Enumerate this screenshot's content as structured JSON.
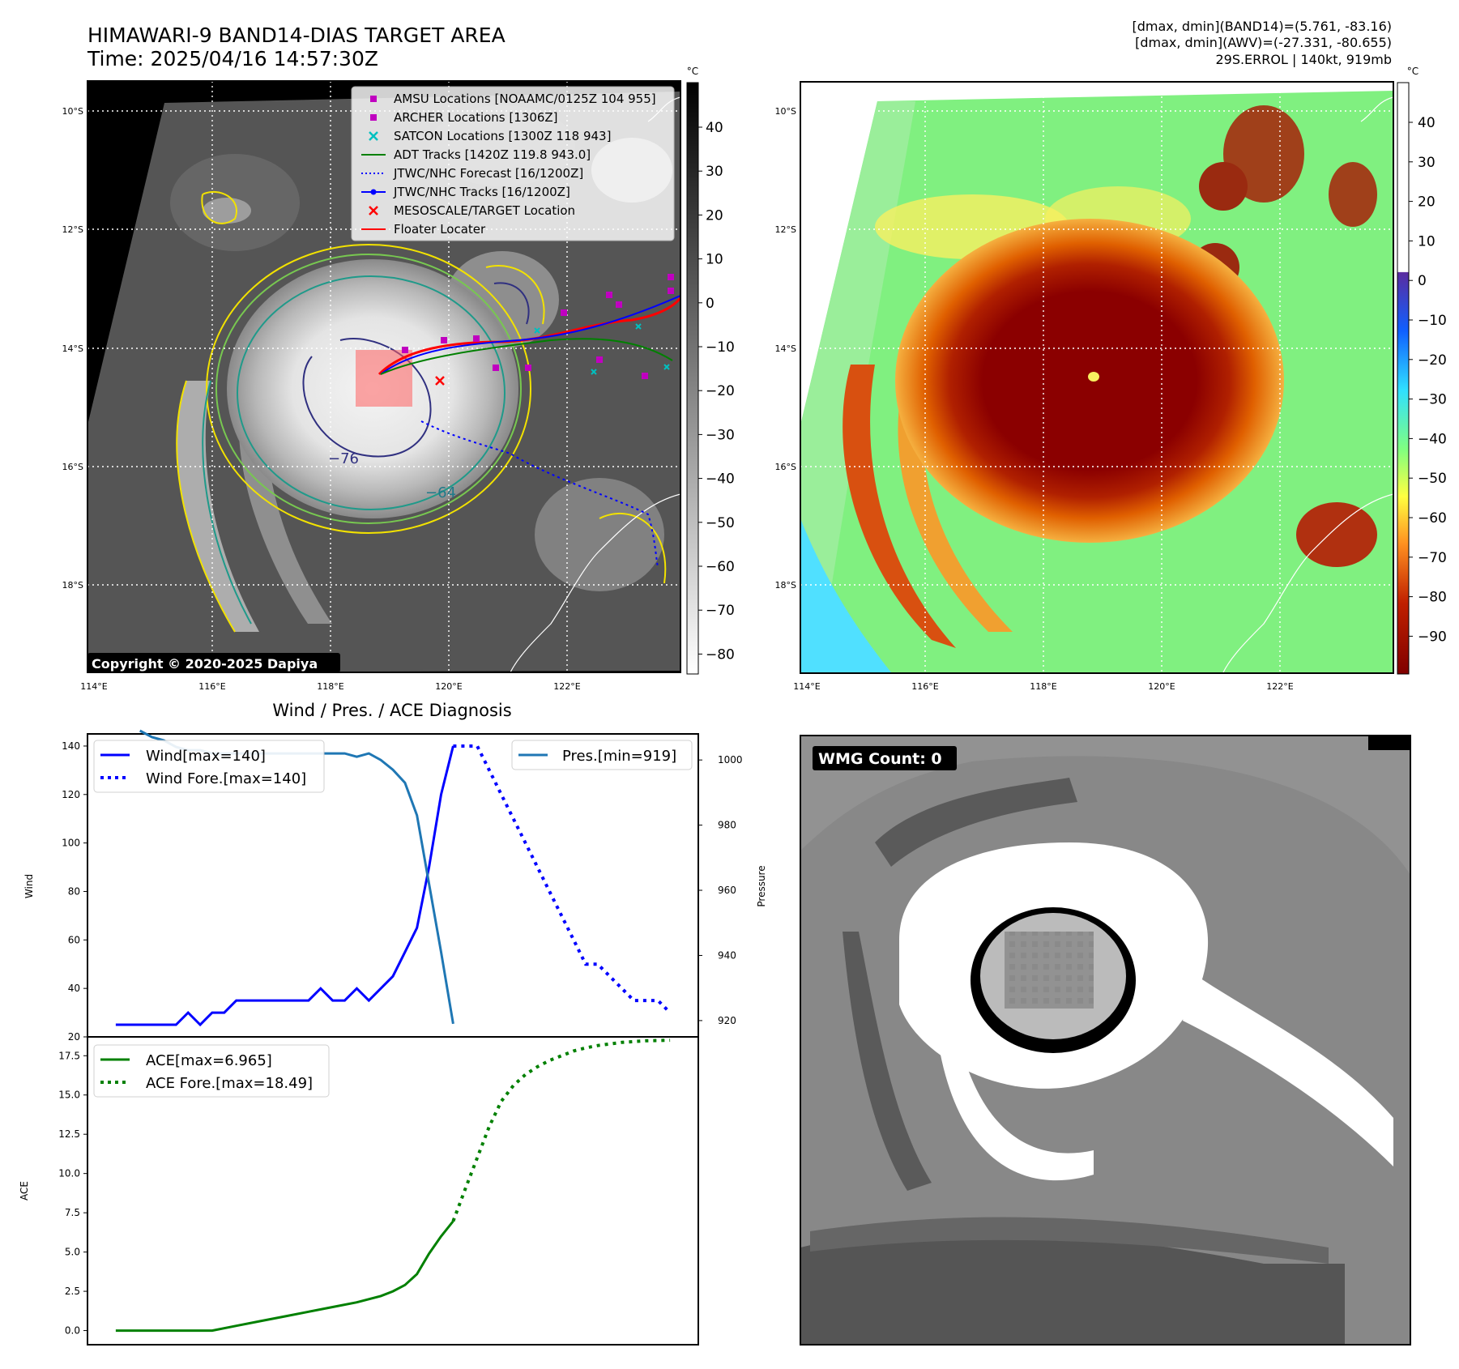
{
  "header": {
    "title_line1": "HIMAWARI-9 BAND14-DIAS TARGET AREA",
    "title_line2": "Time: 2025/04/16 14:57:30Z",
    "info_line1": "[dmax, dmin](BAND14)=(5.761, -83.16)",
    "info_line2": "[dmax, dmin](AWV)=(-27.331, -80.655)",
    "info_line3": "29S.ERROL | 140kt, 919mb"
  },
  "colors": {
    "wind": "#0000ff",
    "pressure": "#1f77b4",
    "ace": "#008000",
    "track_red": "#ff0000",
    "amsu": "#c000c0",
    "satcon": "#00c0c0"
  },
  "map_left": {
    "lon_ticks": [
      "114°E",
      "116°E",
      "118°E",
      "120°E",
      "122°E"
    ],
    "lat_ticks": [
      "10°S",
      "12°S",
      "14°S",
      "16°S",
      "18°S"
    ],
    "colorbar_unit": "°C",
    "colorbar_ticks": [
      "40",
      "30",
      "20",
      "10",
      "0",
      "−10",
      "−20",
      "−30",
      "−40",
      "−50",
      "−60",
      "−70",
      "−80"
    ],
    "contour_labels": [
      "−76",
      "−64"
    ],
    "copyright": "Copyright © 2020-2025 Dapiya",
    "legend": [
      {
        "label": "AMSU Locations [NOAAMC/0125Z 104 955]",
        "icon": "square-marker",
        "color": "#c000c0"
      },
      {
        "label": "ARCHER Locations [1306Z]",
        "icon": "square-marker",
        "color": "#c000c0"
      },
      {
        "label": "SATCON Locations [1300Z 118 943]",
        "icon": "x-marker",
        "color": "#00c0c0"
      },
      {
        "label": "ADT Tracks [1420Z 119.8 943.0]",
        "icon": "solid-line",
        "color": "#008000"
      },
      {
        "label": "JTWC/NHC Forecast [16/1200Z]",
        "icon": "dotted-line",
        "color": "#0000ff"
      },
      {
        "label": "JTWC/NHC Tracks [16/1200Z]",
        "icon": "dot-line",
        "color": "#0000ff"
      },
      {
        "label": "MESOSCALE/TARGET Location",
        "icon": "x-marker",
        "color": "#ff0000"
      },
      {
        "label": "Floater Locater",
        "icon": "solid-line",
        "color": "#ff0000"
      }
    ]
  },
  "map_right": {
    "lon_ticks": [
      "114°E",
      "116°E",
      "118°E",
      "120°E",
      "122°E"
    ],
    "lat_ticks": [
      "10°S",
      "12°S",
      "14°S",
      "16°S",
      "18°S"
    ],
    "colorbar_unit": "°C",
    "colorbar_ticks": [
      "40",
      "30",
      "20",
      "10",
      "0",
      "−10",
      "−20",
      "−30",
      "−40",
      "−50",
      "−60",
      "−70",
      "−80",
      "−90"
    ]
  },
  "wmg": {
    "label": "WMG Count: 0"
  },
  "chart_data": [
    {
      "type": "line",
      "title": "Wind / Pres. / ACE Diagnosis",
      "ylabel": "Wind",
      "ylabel_right": "Pressure",
      "ylim": [
        20,
        145
      ],
      "ylim_right": [
        915,
        1008
      ],
      "yticks": [
        20,
        40,
        60,
        80,
        100,
        120,
        140
      ],
      "yticks_right": [
        920,
        940,
        960,
        980,
        1000
      ],
      "x": [
        0,
        1,
        2,
        3,
        4,
        5,
        6,
        7,
        8,
        9,
        10,
        11,
        12,
        13,
        14,
        15,
        16,
        17,
        18,
        19,
        20,
        21,
        22,
        23,
        24,
        25,
        26,
        27,
        28,
        29,
        30,
        31,
        32,
        33,
        34,
        35,
        36,
        37,
        38,
        39,
        40,
        41,
        42,
        43,
        44,
        45,
        46
      ],
      "legend_left": [
        "Wind[max=140]",
        "Wind Fore.[max=140]"
      ],
      "legend_right": [
        "Pres.[min=919]"
      ],
      "series": [
        {
          "name": "Wind[max=140]",
          "style": "solid",
          "axis": "left",
          "x": [
            0,
            1,
            2,
            3,
            4,
            5,
            6,
            7,
            8,
            9,
            10,
            11,
            12,
            13,
            14,
            15,
            16,
            17,
            18,
            19,
            20,
            21,
            22,
            23,
            24,
            25,
            26,
            27,
            28,
            29,
            30
          ],
          "values": [
            25,
            25,
            25,
            25,
            25,
            25,
            30,
            25,
            30,
            30,
            35,
            35,
            35,
            35,
            35,
            35,
            35,
            40,
            35,
            35,
            40,
            35,
            40,
            45,
            55,
            65,
            90,
            120,
            140,
            null,
            null
          ]
        },
        {
          "name": "Wind Fore.[max=140]",
          "style": "dotted",
          "axis": "left",
          "x": [
            28,
            29,
            30,
            31,
            32,
            33,
            34,
            35,
            36,
            37,
            38,
            39,
            40,
            41,
            42,
            43,
            44,
            45,
            46
          ],
          "values": [
            140,
            140,
            140,
            130,
            120,
            110,
            100,
            90,
            80,
            70,
            60,
            50,
            50,
            45,
            40,
            35,
            35,
            35,
            30
          ]
        },
        {
          "name": "Pres.[min=919]",
          "style": "solid",
          "axis": "right",
          "x": [
            2,
            3,
            4,
            5,
            6,
            7,
            8,
            9,
            10,
            11,
            12,
            13,
            14,
            15,
            16,
            17,
            18,
            19,
            20,
            21,
            22,
            23,
            24,
            25,
            26,
            27,
            28
          ],
          "values": [
            1009,
            1007,
            1006,
            1004,
            1003,
            1003,
            1002,
            1002,
            1002,
            1002,
            1002,
            1002,
            1002,
            1002,
            1002,
            1002,
            1002,
            1002,
            1001,
            1002,
            1000,
            997,
            993,
            983,
            962,
            941,
            919
          ]
        }
      ]
    },
    {
      "type": "line",
      "title": "",
      "ylabel": "ACE",
      "ylim": [
        -0.9,
        18.7
      ],
      "yticks": [
        0.0,
        2.5,
        5.0,
        7.5,
        10.0,
        12.5,
        15.0,
        17.5
      ],
      "ytick_labels": [
        "0.0",
        "2.5",
        "5.0",
        "7.5",
        "10.0",
        "12.5",
        "15.0",
        "17.5"
      ],
      "legend": [
        "ACE[max=6.965]",
        "ACE Fore.[max=18.49]"
      ],
      "series": [
        {
          "name": "ACE[max=6.965]",
          "style": "solid",
          "x": [
            0,
            2,
            4,
            6,
            8,
            10,
            12,
            14,
            16,
            18,
            20,
            22,
            23,
            24,
            25,
            26,
            27,
            28
          ],
          "values": [
            0,
            0,
            0,
            0,
            0,
            0.3,
            0.6,
            0.9,
            1.2,
            1.5,
            1.8,
            2.2,
            2.5,
            2.9,
            3.6,
            4.9,
            6.0,
            6.965
          ]
        },
        {
          "name": "ACE Fore.[max=18.49]",
          "style": "dotted",
          "x": [
            28,
            29,
            30,
            31,
            32,
            33,
            34,
            35,
            36,
            37,
            38,
            39,
            40,
            41,
            42,
            43,
            44,
            45,
            46
          ],
          "values": [
            6.965,
            9.0,
            11.0,
            13.0,
            14.6,
            15.6,
            16.3,
            16.8,
            17.2,
            17.5,
            17.8,
            18.0,
            18.15,
            18.25,
            18.35,
            18.4,
            18.45,
            18.47,
            18.49
          ]
        }
      ]
    }
  ]
}
